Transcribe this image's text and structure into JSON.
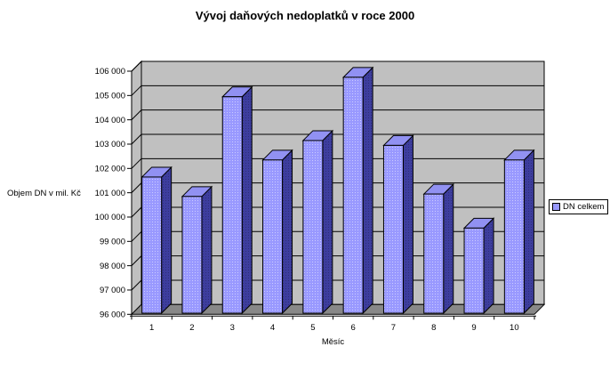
{
  "title": "Vývoj daňových nedoplatků v roce 2000",
  "y_axis_title": "Objem DN v mil. Kč",
  "x_axis_title": "Měsíc",
  "legend": {
    "label": "DN celkem",
    "position": "right"
  },
  "chart_data": {
    "type": "bar",
    "style": "3d-column",
    "title": "Vývoj daňových nedoplatků v roce 2000",
    "xlabel": "Měsíc",
    "ylabel": "Objem DN v mil. Kč",
    "categories": [
      "1",
      "2",
      "3",
      "4",
      "5",
      "6",
      "7",
      "8",
      "9",
      "10"
    ],
    "series": [
      {
        "name": "DN celkem",
        "values": [
          101600,
          100800,
          104900,
          102300,
          103100,
          105700,
          102900,
          100900,
          99500,
          102300
        ]
      }
    ],
    "ylim": [
      96000,
      106000
    ],
    "ytick_step": 1000,
    "ytick_labels": [
      "96 000",
      "97 000",
      "98 000",
      "99 000",
      "100 000",
      "101 000",
      "102 000",
      "103 000",
      "104 000",
      "105 000",
      "106 000"
    ],
    "grid": true,
    "legend_position": "right"
  },
  "colors": {
    "background": "#ffffff",
    "wall": "#c0c0c0",
    "floor": "#888888",
    "outline": "#000000",
    "bar_front": "#9999ff",
    "bar_front_dot": "#ccccff",
    "bar_side": "#3d3d9e",
    "bar_side_dot": "#2e2e77",
    "bar_top": "#9191f2",
    "text": "#000000"
  }
}
